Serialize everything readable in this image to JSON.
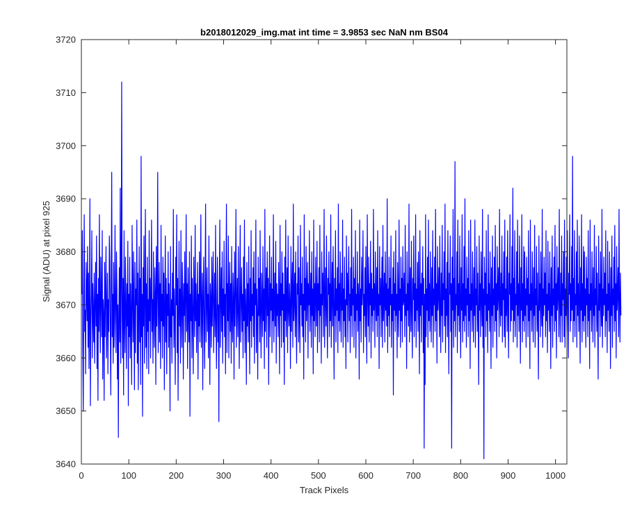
{
  "chart_data": {
    "type": "line",
    "title": "b2018012029_img.mat int time = 3.9853 sec  NaN nm BS04",
    "xlabel": "Track Pixels",
    "ylabel": "Signal (ADU) at pixel 925",
    "xlim": [
      0,
      1024
    ],
    "ylim": [
      3640,
      3720
    ],
    "xticks": [
      0,
      100,
      200,
      300,
      400,
      500,
      600,
      700,
      800,
      900,
      1000
    ],
    "yticks": [
      3640,
      3650,
      3660,
      3670,
      3680,
      3690,
      3700,
      3710,
      3720
    ],
    "grid": false,
    "legend": "none",
    "series": [
      {
        "color": "#0000ff",
        "x_start": 1,
        "x_step": 1,
        "values": [
          3672,
          3684,
          3662,
          3650,
          3672,
          3687,
          3665,
          3669,
          3657,
          3678,
          3673,
          3667,
          3681,
          3662,
          3676,
          3658,
          3669,
          3690,
          3651,
          3667,
          3672,
          3684,
          3660,
          3674,
          3668,
          3663,
          3676,
          3659,
          3670,
          3678,
          3666,
          3683,
          3658,
          3672,
          3652,
          3675,
          3665,
          3687,
          3669,
          3661,
          3679,
          3672,
          3664,
          3684,
          3656,
          3671,
          3668,
          3652,
          3678,
          3664,
          3673,
          3681,
          3660,
          3668,
          3676,
          3657,
          3671,
          3665,
          3683,
          3678,
          3666,
          3653,
          3674,
          3695,
          3664,
          3672,
          3659,
          3678,
          3662,
          3669,
          3685,
          3667,
          3661,
          3680,
          3673,
          3656,
          3670,
          3645,
          3668,
          3677,
          3663,
          3692,
          3659,
          3674,
          3712,
          3668,
          3660,
          3675,
          3653,
          3684,
          3667,
          3661,
          3679,
          3670,
          3658,
          3674,
          3666,
          3682,
          3651,
          3672,
          3664,
          3679,
          3660,
          3674,
          3668,
          3655,
          3685,
          3672,
          3663,
          3680,
          3667,
          3654,
          3678,
          3661,
          3673,
          3670,
          3686,
          3659,
          3676,
          3654,
          3668,
          3681,
          3663,
          3675,
          3655,
          3698,
          3664,
          3672,
          3649,
          3677,
          3666,
          3683,
          3659,
          3671,
          3688,
          3662,
          3674,
          3658,
          3679,
          3665,
          3671,
          3657,
          3684,
          3667,
          3675,
          3660,
          3672,
          3686,
          3665,
          3671,
          3659,
          3680,
          3668,
          3662,
          3677,
          3672,
          3655,
          3681,
          3666,
          3673,
          3695,
          3661,
          3669,
          3678,
          3663,
          3674,
          3658,
          3685,
          3667,
          3672,
          3660,
          3679,
          3666,
          3676,
          3654,
          3670,
          3683,
          3663,
          3675,
          3657,
          3672,
          3668,
          3680,
          3662,
          3674,
          3667,
          3650,
          3681,
          3664,
          3671,
          3659,
          3676,
          3668,
          3688,
          3662,
          3673,
          3667,
          3655,
          3679,
          3670,
          3687,
          3661,
          3675,
          3652,
          3668,
          3682,
          3666,
          3673,
          3659,
          3684,
          3669,
          3662,
          3678,
          3671,
          3656,
          3674,
          3668,
          3680,
          3663,
          3671,
          3687,
          3665,
          3674,
          3658,
          3677,
          3669,
          3663,
          3680,
          3649,
          3672,
          3667,
          3683,
          3660,
          3675,
          3668,
          3657,
          3679,
          3671,
          3664,
          3685,
          3667,
          3674,
          3661,
          3670,
          3678,
          3656,
          3672,
          3666,
          3680,
          3663,
          3673,
          3687,
          3662,
          3669,
          3676,
          3654,
          3671,
          3679,
          3667,
          3658,
          3674,
          3689,
          3663,
          3670,
          3677,
          3665,
          3672,
          3660,
          3683,
          3668,
          3655,
          3674,
          3671,
          3662,
          3679,
          3666,
          3673,
          3680,
          3661,
          3669,
          3676,
          3664,
          3685,
          3667,
          3658,
          3672,
          3679,
          3663,
          3670,
          3648,
          3674,
          3686,
          3662,
          3671,
          3677,
          3665,
          3680,
          3659,
          3673,
          3668,
          3682,
          3664,
          3672,
          3657,
          3677,
          3689,
          3661,
          3674,
          3667,
          3683,
          3660,
          3671,
          3678,
          3665,
          3674,
          3659,
          3681,
          3668,
          3663,
          3676,
          3671,
          3656,
          3680,
          3666,
          3673,
          3688,
          3662,
          3670,
          3675,
          3664,
          3681,
          3669,
          3658,
          3674,
          3685,
          3663,
          3671,
          3677,
          3665,
          3672,
          3660,
          3679,
          3667,
          3686,
          3661,
          3673,
          3669,
          3655,
          3678,
          3666,
          3674,
          3663,
          3681,
          3670,
          3657,
          3675,
          3667,
          3684,
          3662,
          3672,
          3668,
          3677,
          3664,
          3680,
          3659,
          3674,
          3670,
          3686,
          3661,
          3673,
          3667,
          3656,
          3679,
          3668,
          3675,
          3663,
          3684,
          3669,
          3660,
          3676,
          3671,
          3664,
          3681,
          3667,
          3673,
          3658,
          3688,
          3665,
          3672,
          3677,
          3662,
          3680,
          3668,
          3675,
          3655,
          3671,
          3683,
          3664,
          3674,
          3669,
          3679,
          3661,
          3673,
          3667,
          3687,
          3663,
          3670,
          3676,
          3666,
          3682,
          3659,
          3674,
          3668,
          3672,
          3664,
          3678,
          3671,
          3657,
          3685,
          3668,
          3674,
          3662,
          3680,
          3669,
          3676,
          3663,
          3672,
          3655,
          3679,
          3667,
          3686,
          3664,
          3671,
          3677,
          3661,
          3683,
          3669,
          3666,
          3674,
          3670,
          3658,
          3681,
          3665,
          3673,
          3678,
          3662,
          3689,
          3667,
          3671,
          3676,
          3664,
          3680,
          3669,
          3659,
          3674,
          3672,
          3683,
          3663,
          3677,
          3668,
          3661,
          3685,
          3670,
          3674,
          3666,
          3679,
          3664,
          3672,
          3656,
          3687,
          3669,
          3675,
          3663,
          3681,
          3667,
          3672,
          3678,
          3660,
          3674,
          3670,
          3684,
          3665,
          3671,
          3676,
          3662,
          3680,
          3668,
          3673,
          3657,
          3686,
          3667,
          3674,
          3664,
          3679,
          3671,
          3666,
          3682,
          3661,
          3674,
          3669,
          3677,
          3663,
          3685,
          3668,
          3672,
          3659,
          3680,
          3670,
          3676,
          3664,
          3673,
          3688,
          3662,
          3671,
          3677,
          3666,
          3683,
          3669,
          3660,
          3675,
          3672,
          3680,
          3664,
          3674,
          3667,
          3687,
          3662,
          3671,
          3678,
          3666,
          3681,
          3670,
          3656,
          3675,
          3668,
          3684,
          3663,
          3673,
          3669,
          3677,
          3661,
          3689,
          3667,
          3674,
          3665,
          3680,
          3671,
          3663,
          3676,
          3669,
          3686,
          3662,
          3673,
          3667,
          3679,
          3664,
          3671,
          3658,
          3683,
          3670,
          3676,
          3663,
          3674,
          3681,
          3667,
          3672,
          3661,
          3677,
          3668,
          3688,
          3664,
          3673,
          3670,
          3679,
          3662,
          3675,
          3667,
          3684,
          3660,
          3672,
          3669,
          3680,
          3665,
          3674,
          3671,
          3656,
          3686,
          3667,
          3673,
          3663,
          3679,
          3670,
          3674,
          3684,
          3661,
          3672,
          3668,
          3677,
          3664,
          3681,
          3669,
          3659,
          3687,
          3672,
          3666,
          3679,
          3663,
          3674,
          3670,
          3682,
          3660,
          3676,
          3668,
          3673,
          3665,
          3688,
          3669,
          3674,
          3662,
          3680,
          3671,
          3667,
          3677,
          3664,
          3684,
          3668,
          3672,
          3658,
          3681,
          3670,
          3675,
          3664,
          3673,
          3679,
          3662,
          3685,
          3667,
          3671,
          3676,
          3663,
          3680,
          3669,
          3674,
          3666,
          3690,
          3661,
          3673,
          3668,
          3679,
          3664,
          3675,
          3670,
          3683,
          3662,
          3672,
          3667,
          3677,
          3653,
          3680,
          3669,
          3674,
          3665,
          3684,
          3668,
          3672,
          3660,
          3678,
          3671,
          3664,
          3686,
          3669,
          3673,
          3662,
          3679,
          3667,
          3675,
          3663,
          3681,
          3670,
          3671,
          3676,
          3664,
          3685,
          3668,
          3672,
          3658,
          3680,
          3669,
          3674,
          3666,
          3689,
          3663,
          3672,
          3677,
          3665,
          3682,
          3669,
          3660,
          3675,
          3671,
          3683,
          3664,
          3674,
          3667,
          3687,
          3662,
          3673,
          3669,
          3678,
          3665,
          3680,
          3671,
          3657,
          3684,
          3668,
          3674,
          3663,
          3676,
          3670,
          3681,
          3661,
          3675,
          3643,
          3672,
          3655,
          3687,
          3664,
          3673,
          3669,
          3679,
          3662,
          3686,
          3667,
          3674,
          3665,
          3680,
          3671,
          3663,
          3677,
          3668,
          3684,
          3662,
          3673,
          3670,
          3679,
          3665,
          3688,
          3667,
          3674,
          3659,
          3681,
          3669,
          3672,
          3677,
          3664,
          3683,
          3670,
          3661,
          3676,
          3668,
          3685,
          3663,
          3674,
          3671,
          3680,
          3666,
          3689,
          3661,
          3673,
          3668,
          3678,
          3664,
          3684,
          3670,
          3657,
          3676,
          3672,
          3683,
          3665,
          3674,
          3643,
          3679,
          3669,
          3688,
          3662,
          3675,
          3667,
          3697,
          3664,
          3672,
          3670,
          3680,
          3661,
          3686,
          3668,
          3674,
          3665,
          3683,
          3671,
          3660,
          3677,
          3669,
          3687,
          3663,
          3674,
          3667,
          3681,
          3665,
          3690,
          3668,
          3673,
          3662,
          3679,
          3670,
          3675,
          3664,
          3684,
          3667,
          3672,
          3658,
          3686,
          3669,
          3674,
          3665,
          3680,
          3671,
          3663,
          3677,
          3668,
          3686,
          3662,
          3673,
          3670,
          3681,
          3665,
          3676,
          3667,
          3655,
          3683,
          3669,
          3674,
          3664,
          3680,
          3671,
          3666,
          3688,
          3662,
          3673,
          3641,
          3679,
          3670,
          3676,
          3664,
          3684,
          3667,
          3672,
          3661,
          3687,
          3669,
          3674,
          3665,
          3680,
          3671,
          3658,
          3677,
          3668,
          3683,
          3662,
          3673,
          3670,
          3679,
          3665,
          3685,
          3667,
          3674,
          3660,
          3681,
          3669,
          3672,
          3677,
          3664,
          3688,
          3670,
          3666,
          3676,
          3668,
          3683,
          3663,
          3674,
          3671,
          3680,
          3664,
          3686,
          3662,
          3673,
          3668,
          3679,
          3665,
          3684,
          3670,
          3660,
          3676,
          3672,
          3687,
          3665,
          3674,
          3667,
          3681,
          3669,
          3692,
          3663,
          3675,
          3667,
          3684,
          3664,
          3672,
          3670,
          3680,
          3662,
          3686,
          3668,
          3674,
          3665,
          3683,
          3671,
          3659,
          3677,
          3669,
          3687,
          3663,
          3674,
          3667,
          3681,
          3665,
          3680,
          3668,
          3673,
          3662,
          3679,
          3670,
          3675,
          3664,
          3684,
          3667,
          3672,
          3658,
          3686,
          3669,
          3674,
          3665,
          3680,
          3671,
          3663,
          3677,
          3668,
          3685,
          3662,
          3673,
          3670,
          3681,
          3665,
          3676,
          3667,
          3656,
          3683,
          3669,
          3674,
          3664,
          3680,
          3671,
          3666,
          3688,
          3662,
          3673,
          3668,
          3679,
          3670,
          3676,
          3664,
          3684,
          3667,
          3672,
          3661,
          3682,
          3669,
          3674,
          3665,
          3680,
          3671,
          3658,
          3677,
          3668,
          3683,
          3662,
          3673,
          3670,
          3679,
          3665,
          3685,
          3667,
          3674,
          3660,
          3681,
          3669,
          3672,
          3677,
          3664,
          3688,
          3670,
          3663,
          3676,
          3668,
          3683,
          3663,
          3674,
          3671,
          3680,
          3664,
          3686,
          3662,
          3673,
          3668,
          3679,
          3665,
          3684,
          3670,
          3660,
          3676,
          3672,
          3687,
          3665,
          3674,
          3667,
          3681,
          3669,
          3698,
          3663,
          3675,
          3667,
          3684,
          3664,
          3672,
          3670,
          3680,
          3662,
          3686,
          3668,
          3674,
          3665,
          3683,
          3671,
          3659,
          3677,
          3669,
          3687,
          3663,
          3674,
          3667,
          3681,
          3665,
          3680,
          3668,
          3673,
          3662,
          3679,
          3670,
          3675,
          3664,
          3684,
          3667,
          3672,
          3658,
          3686,
          3669,
          3674,
          3665,
          3680,
          3671,
          3663,
          3677,
          3668,
          3685,
          3662,
          3673,
          3670,
          3681,
          3665,
          3676,
          3667,
          3656,
          3683,
          3669,
          3674,
          3664,
          3680,
          3671,
          3666,
          3688,
          3662,
          3673,
          3668,
          3679,
          3670,
          3676,
          3664,
          3684,
          3667,
          3672,
          3661,
          3682,
          3669,
          3674,
          3665,
          3680,
          3671,
          3658,
          3677,
          3668,
          3683,
          3662,
          3673,
          3670,
          3679,
          3665,
          3685,
          3667,
          3674,
          3660,
          3681,
          3669,
          3672,
          3677,
          3664,
          3688,
          3670,
          3663,
          3676,
          3668
        ]
      }
    ]
  }
}
